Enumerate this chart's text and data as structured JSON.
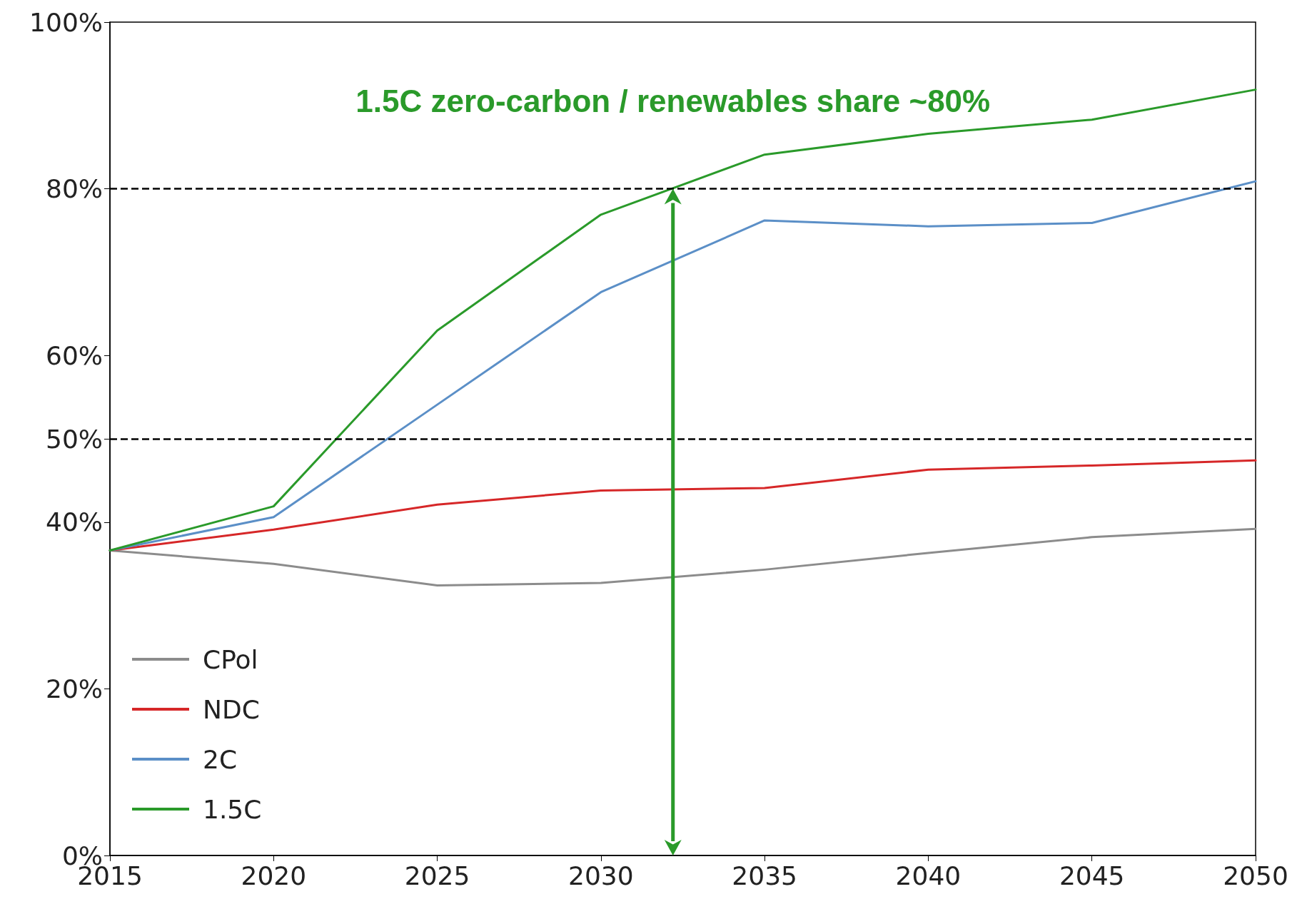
{
  "chart_data": {
    "type": "line",
    "x": [
      2015,
      2020,
      2025,
      2030,
      2035,
      2040,
      2045,
      2050
    ],
    "series": [
      {
        "name": "CPol",
        "color": "#8c8c8c",
        "values": [
          36.6,
          35.0,
          32.4,
          32.7,
          34.3,
          36.3,
          38.2,
          39.2
        ]
      },
      {
        "name": "NDC",
        "color": "#d62728",
        "values": [
          36.6,
          39.1,
          42.1,
          43.8,
          44.1,
          46.3,
          46.8,
          47.4
        ]
      },
      {
        "name": "2C",
        "color": "#5b8fc7",
        "values": [
          36.6,
          40.6,
          54.1,
          67.6,
          76.2,
          75.5,
          75.9,
          80.9
        ]
      },
      {
        "name": "1.5C",
        "color": "#2a9a2a",
        "values": [
          36.6,
          41.9,
          63.0,
          76.9,
          84.1,
          86.6,
          88.3,
          91.9
        ]
      }
    ],
    "xlim": [
      2015,
      2050
    ],
    "xticks": [
      2015,
      2020,
      2025,
      2030,
      2035,
      2040,
      2045,
      2050
    ],
    "ylim": [
      0,
      100
    ],
    "yticks": [
      {
        "value": 0,
        "label": "0%"
      },
      {
        "value": 20,
        "label": "20%"
      },
      {
        "value": 40,
        "label": "40%"
      },
      {
        "value": 50,
        "label": "50%"
      },
      {
        "value": 60,
        "label": "60%"
      },
      {
        "value": 80,
        "label": "80%"
      },
      {
        "value": 100,
        "label": "100%"
      }
    ],
    "ref_lines": [
      {
        "axis": "y",
        "value": 80,
        "color": "#000000",
        "line_style": "dashed"
      },
      {
        "axis": "y",
        "value": 50,
        "color": "#000000",
        "line_style": "dashed"
      }
    ],
    "annotations": [
      {
        "text": "1.5C zero-carbon / renewables share ~80%",
        "x": 2032.2,
        "y": 80
      }
    ],
    "legend": "bottom left",
    "grid": false,
    "marker": "none",
    "line_style": "solid"
  }
}
